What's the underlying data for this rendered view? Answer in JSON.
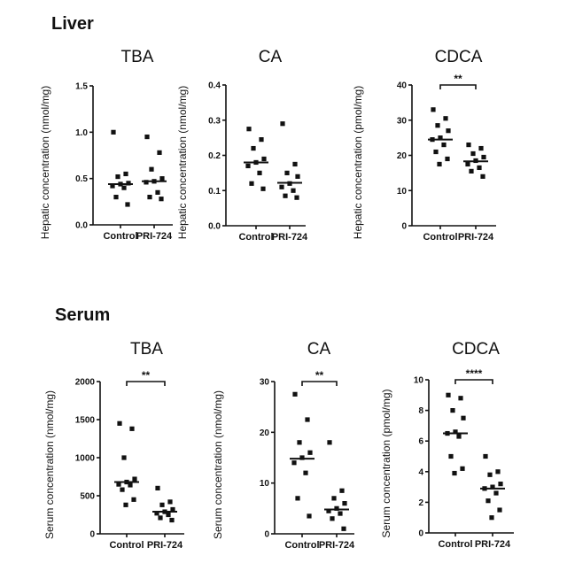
{
  "sections": [
    {
      "title": "Liver"
    },
    {
      "title": "Serum"
    }
  ],
  "chart_data": [
    {
      "type": "scatter",
      "title": "TBA",
      "ylabel": "Hepatic concentration (nmol/mg)",
      "categories": [
        "Control",
        "PRI-724"
      ],
      "ylim": [
        0,
        1.5
      ],
      "yticks": [
        "0.0",
        "0.5",
        "1.0",
        "1.5"
      ],
      "significance": "",
      "series": [
        {
          "name": "Control",
          "values": [
            1.0,
            0.55,
            0.52,
            0.45,
            0.44,
            0.42,
            0.4,
            0.3,
            0.22
          ],
          "median": 0.44
        },
        {
          "name": "PRI-724",
          "values": [
            0.95,
            0.78,
            0.6,
            0.5,
            0.47,
            0.46,
            0.35,
            0.3,
            0.28
          ],
          "median": 0.47
        }
      ]
    },
    {
      "type": "scatter",
      "title": "CA",
      "ylabel": "Hepatic concentration (nmol/mg)",
      "categories": [
        "Control",
        "PRI-724"
      ],
      "ylim": [
        0,
        0.4
      ],
      "yticks": [
        "0.0",
        "0.1",
        "0.2",
        "0.3",
        "0.4"
      ],
      "significance": "",
      "series": [
        {
          "name": "Control",
          "values": [
            0.275,
            0.245,
            0.22,
            0.19,
            0.18,
            0.17,
            0.15,
            0.12,
            0.105
          ],
          "median": 0.18
        },
        {
          "name": "PRI-724",
          "values": [
            0.29,
            0.175,
            0.15,
            0.14,
            0.12,
            0.11,
            0.1,
            0.085,
            0.08
          ],
          "median": 0.122
        }
      ]
    },
    {
      "type": "scatter",
      "title": "CDCA",
      "ylabel": "Hepatic concentration (pmol/mg)",
      "categories": [
        "Control",
        "PRI-724"
      ],
      "ylim": [
        0,
        40
      ],
      "yticks": [
        "0",
        "10",
        "20",
        "30",
        "40"
      ],
      "significance": "**",
      "series": [
        {
          "name": "Control",
          "values": [
            33,
            30.5,
            28.5,
            27,
            25,
            24.5,
            23,
            21,
            19,
            17.5
          ],
          "median": 24.5
        },
        {
          "name": "PRI-724",
          "values": [
            23,
            22,
            20.5,
            19.5,
            18.5,
            17.5,
            16.5,
            15.5,
            14
          ],
          "median": 18.3
        }
      ]
    },
    {
      "type": "scatter",
      "title": "TBA",
      "ylabel": "Serum concentration (nmol/mg)",
      "categories": [
        "Control",
        "PRI-724"
      ],
      "ylim": [
        0,
        2000
      ],
      "yticks": [
        "0",
        "500",
        "1000",
        "1500",
        "2000"
      ],
      "significance": "**",
      "series": [
        {
          "name": "Control",
          "values": [
            1450,
            1380,
            1000,
            720,
            680,
            650,
            640,
            580,
            450,
            380
          ],
          "median": 680
        },
        {
          "name": "PRI-724",
          "values": [
            600,
            420,
            380,
            320,
            290,
            270,
            250,
            210,
            180
          ],
          "median": 290
        }
      ]
    },
    {
      "type": "scatter",
      "title": "CA",
      "ylabel": "Serum concentration (nmol/mg)",
      "categories": [
        "Control",
        "PRI-724"
      ],
      "ylim": [
        0,
        30
      ],
      "yticks": [
        "0",
        "10",
        "20",
        "30"
      ],
      "significance": "**",
      "series": [
        {
          "name": "Control",
          "values": [
            27.5,
            22.5,
            18,
            16,
            15,
            14,
            12,
            7,
            3.5
          ],
          "median": 14.8
        },
        {
          "name": "PRI-724",
          "values": [
            18,
            8.5,
            7,
            6,
            5,
            4.5,
            4,
            3,
            1
          ],
          "median": 4.8
        }
      ]
    },
    {
      "type": "scatter",
      "title": "CDCA",
      "ylabel": "Serum concentration (pmol/mg)",
      "categories": [
        "Control",
        "PRI-724"
      ],
      "ylim": [
        0,
        10
      ],
      "yticks": [
        "0",
        "2",
        "4",
        "6",
        "8",
        "10"
      ],
      "significance": "****",
      "series": [
        {
          "name": "Control",
          "values": [
            9.0,
            8.8,
            8.0,
            7.5,
            6.6,
            6.5,
            6.3,
            5.0,
            4.2,
            3.9
          ],
          "median": 6.5
        },
        {
          "name": "PRI-724",
          "values": [
            5.0,
            4.0,
            3.8,
            3.2,
            3.0,
            2.9,
            2.6,
            2.1,
            1.5,
            1.0
          ],
          "median": 2.9
        }
      ]
    }
  ]
}
